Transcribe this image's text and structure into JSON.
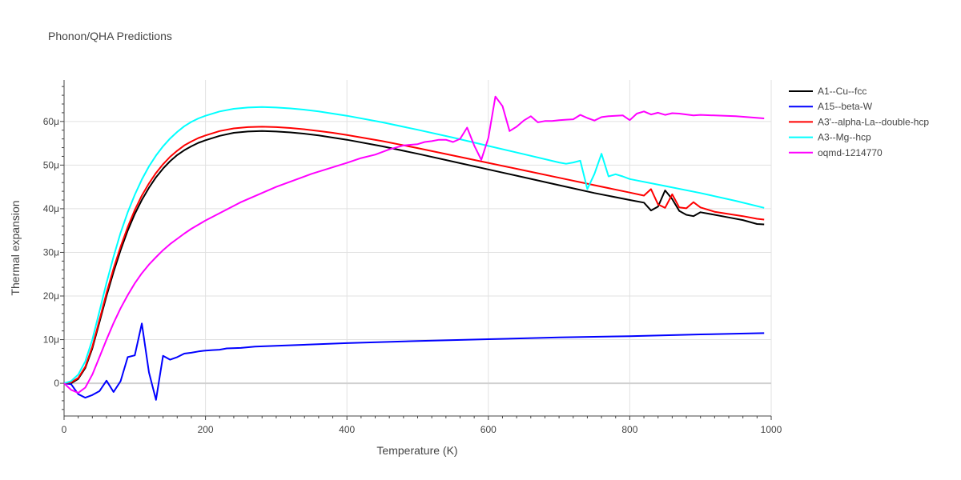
{
  "chart_data": {
    "type": "line",
    "title": "Phonon/QHA Predictions",
    "xlabel": "Temperature (K)",
    "ylabel": "Thermal expansion",
    "xlim": [
      0,
      1000
    ],
    "ylim": [
      -7.5e-06,
      6.95e-05
    ],
    "x_ticks": [
      0,
      200,
      400,
      600,
      800,
      1000
    ],
    "x_tick_labels": [
      "0",
      "200",
      "400",
      "600",
      "800",
      "1000"
    ],
    "y_ticks": [
      0,
      1e-05,
      2e-05,
      3e-05,
      4e-05,
      5e-05,
      6e-05
    ],
    "y_tick_labels": [
      "0",
      "10μ",
      "20μ",
      "30μ",
      "40μ",
      "50μ",
      "60μ"
    ],
    "grid": true,
    "legend_position": "top-right",
    "series": [
      {
        "name": "A1--Cu--fcc",
        "color": "#000000",
        "x": [
          0,
          10,
          20,
          30,
          40,
          50,
          60,
          70,
          80,
          90,
          100,
          110,
          120,
          130,
          140,
          150,
          160,
          170,
          180,
          190,
          200,
          220,
          240,
          260,
          280,
          300,
          320,
          340,
          360,
          380,
          400,
          450,
          500,
          550,
          600,
          650,
          700,
          750,
          800,
          820,
          830,
          840,
          850,
          860,
          870,
          880,
          890,
          900,
          920,
          940,
          960,
          980,
          990
        ],
        "y": [
          0,
          0,
          1e-06,
          3.5e-06,
          8e-06,
          1.4e-05,
          2e-05,
          2.55e-05,
          3.05e-05,
          3.5e-05,
          3.88e-05,
          4.2e-05,
          4.48e-05,
          4.72e-05,
          4.92e-05,
          5.09e-05,
          5.23e-05,
          5.34e-05,
          5.43e-05,
          5.51e-05,
          5.57e-05,
          5.67e-05,
          5.74e-05,
          5.77e-05,
          5.78e-05,
          5.77e-05,
          5.75e-05,
          5.72e-05,
          5.68e-05,
          5.63e-05,
          5.58e-05,
          5.43e-05,
          5.26e-05,
          5.08e-05,
          4.9e-05,
          4.72e-05,
          4.54e-05,
          4.36e-05,
          4.2e-05,
          4.14e-05,
          3.96e-05,
          4.05e-05,
          4.42e-05,
          4.22e-05,
          3.95e-05,
          3.86e-05,
          3.83e-05,
          3.92e-05,
          3.86e-05,
          3.8e-05,
          3.74e-05,
          3.65e-05,
          3.64e-05
        ]
      },
      {
        "name": "A15--beta-W",
        "color": "#0000ff",
        "x": [
          0,
          10,
          20,
          30,
          40,
          50,
          60,
          70,
          80,
          90,
          100,
          110,
          120,
          130,
          140,
          150,
          160,
          170,
          180,
          190,
          200,
          210,
          220,
          230,
          250,
          270,
          300,
          400,
          500,
          600,
          700,
          800,
          900,
          990
        ],
        "y": [
          0,
          -2e-07,
          -2.5e-06,
          -3.3e-06,
          -2.7e-06,
          -1.8e-06,
          6e-07,
          -2e-06,
          5e-07,
          6e-06,
          6.4e-06,
          1.37e-05,
          2.5e-06,
          -3.8e-06,
          6.3e-06,
          5.4e-06,
          6e-06,
          6.8e-06,
          7e-06,
          7.3e-06,
          7.5e-06,
          7.6e-06,
          7.7e-06,
          8e-06,
          8.1e-06,
          8.4e-06,
          8.6e-06,
          9.2e-06,
          9.7e-06,
          1.01e-05,
          1.05e-05,
          1.08e-05,
          1.12e-05,
          1.15e-05
        ]
      },
      {
        "name": "A3'--alpha-La--double-hcp",
        "color": "#ff0000",
        "x": [
          0,
          10,
          20,
          30,
          40,
          50,
          60,
          70,
          80,
          90,
          100,
          110,
          120,
          130,
          140,
          150,
          160,
          170,
          180,
          190,
          200,
          220,
          240,
          260,
          280,
          300,
          320,
          340,
          360,
          380,
          400,
          450,
          500,
          550,
          600,
          650,
          700,
          750,
          800,
          820,
          830,
          840,
          850,
          860,
          870,
          880,
          890,
          900,
          920,
          940,
          960,
          980,
          990
        ],
        "y": [
          0,
          2e-07,
          1.2e-06,
          3.8e-06,
          8.4e-06,
          1.45e-05,
          2.07e-05,
          2.63e-05,
          3.13e-05,
          3.58e-05,
          3.97e-05,
          4.3e-05,
          4.58e-05,
          4.82e-05,
          5.02e-05,
          5.19e-05,
          5.33e-05,
          5.45e-05,
          5.54e-05,
          5.62e-05,
          5.68e-05,
          5.78e-05,
          5.84e-05,
          5.87e-05,
          5.88e-05,
          5.87e-05,
          5.85e-05,
          5.82e-05,
          5.78e-05,
          5.74e-05,
          5.69e-05,
          5.55e-05,
          5.39e-05,
          5.22e-05,
          5.05e-05,
          4.88e-05,
          4.71e-05,
          4.54e-05,
          4.37e-05,
          4.3e-05,
          4.45e-05,
          4.1e-05,
          4.02e-05,
          4.33e-05,
          4.03e-05,
          4.01e-05,
          4.15e-05,
          4.03e-05,
          3.93e-05,
          3.88e-05,
          3.83e-05,
          3.77e-05,
          3.75e-05
        ]
      },
      {
        "name": "A3--Mg--hcp",
        "color": "#00ffff",
        "x": [
          0,
          10,
          20,
          30,
          40,
          50,
          60,
          70,
          80,
          90,
          100,
          110,
          120,
          130,
          140,
          150,
          160,
          170,
          180,
          190,
          200,
          220,
          240,
          260,
          280,
          300,
          320,
          340,
          360,
          380,
          400,
          450,
          500,
          550,
          600,
          650,
          700,
          710,
          720,
          730,
          740,
          750,
          760,
          770,
          780,
          790,
          800,
          850,
          900,
          950,
          990
        ],
        "y": [
          0,
          5e-07,
          2e-06,
          5e-06,
          1e-05,
          1.65e-05,
          2.3e-05,
          2.9e-05,
          3.45e-05,
          3.92e-05,
          4.32e-05,
          4.67e-05,
          4.97e-05,
          5.22e-05,
          5.43e-05,
          5.61e-05,
          5.76e-05,
          5.89e-05,
          5.99e-05,
          6.07e-05,
          6.13e-05,
          6.23e-05,
          6.29e-05,
          6.32e-05,
          6.33e-05,
          6.32e-05,
          6.3e-05,
          6.27e-05,
          6.23e-05,
          6.18e-05,
          6.13e-05,
          5.98e-05,
          5.81e-05,
          5.63e-05,
          5.44e-05,
          5.25e-05,
          5.06e-05,
          5.03e-05,
          5.06e-05,
          5.1e-05,
          4.45e-05,
          4.8e-05,
          5.26e-05,
          4.74e-05,
          4.79e-05,
          4.74e-05,
          4.68e-05,
          4.52e-05,
          4.36e-05,
          4.18e-05,
          4.02e-05
        ]
      },
      {
        "name": "oqmd-1214770",
        "color": "#ff00ff",
        "x": [
          0,
          10,
          20,
          30,
          40,
          50,
          60,
          70,
          80,
          90,
          100,
          110,
          120,
          130,
          140,
          150,
          160,
          170,
          180,
          200,
          250,
          300,
          350,
          400,
          420,
          440,
          460,
          480,
          500,
          510,
          520,
          530,
          540,
          550,
          560,
          570,
          580,
          590,
          600,
          610,
          620,
          630,
          640,
          650,
          660,
          670,
          680,
          690,
          700,
          710,
          720,
          730,
          740,
          750,
          760,
          770,
          780,
          790,
          800,
          810,
          820,
          830,
          840,
          850,
          860,
          870,
          880,
          890,
          900,
          950,
          990
        ],
        "y": [
          0,
          -1.5e-06,
          -2.2e-06,
          -1e-06,
          2e-06,
          6e-06,
          1e-05,
          1.38e-05,
          1.72e-05,
          2.02e-05,
          2.29e-05,
          2.52e-05,
          2.72e-05,
          2.89e-05,
          3.05e-05,
          3.19e-05,
          3.31e-05,
          3.43e-05,
          3.54e-05,
          3.73e-05,
          4.15e-05,
          4.5e-05,
          4.8e-05,
          5.05e-05,
          5.16e-05,
          5.24e-05,
          5.36e-05,
          5.45e-05,
          5.48e-05,
          5.53e-05,
          5.55e-05,
          5.58e-05,
          5.58e-05,
          5.53e-05,
          5.6e-05,
          5.86e-05,
          5.45e-05,
          5.12e-05,
          5.62e-05,
          6.57e-05,
          6.35e-05,
          5.78e-05,
          5.88e-05,
          6.02e-05,
          6.12e-05,
          5.98e-05,
          6.01e-05,
          6.01e-05,
          6.03e-05,
          6.04e-05,
          6.05e-05,
          6.15e-05,
          6.08e-05,
          6.02e-05,
          6.1e-05,
          6.12e-05,
          6.13e-05,
          6.14e-05,
          6.03e-05,
          6.18e-05,
          6.23e-05,
          6.16e-05,
          6.2e-05,
          6.15e-05,
          6.19e-05,
          6.18e-05,
          6.16e-05,
          6.14e-05,
          6.15e-05,
          6.12e-05,
          6.07e-05
        ]
      }
    ]
  }
}
